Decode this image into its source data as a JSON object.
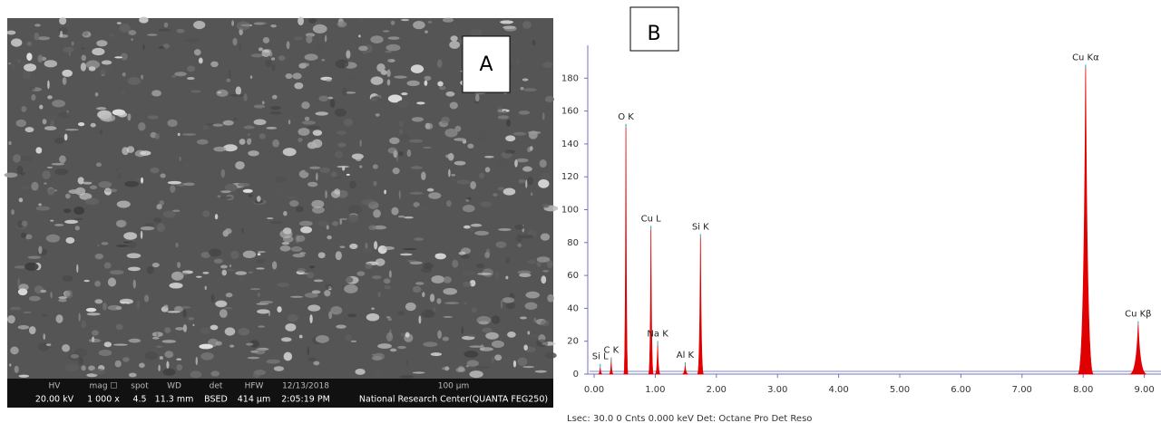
{
  "panel_a": {
    "label": "A",
    "info_bar": [
      {
        "top": "HV",
        "bottom": "20.00 kV"
      },
      {
        "top": "mag ☐",
        "bottom": "1 000 x"
      },
      {
        "top": "spot",
        "bottom": "4.5"
      },
      {
        "top": "WD",
        "bottom": "11.3 mm"
      },
      {
        "top": "det",
        "bottom": "BSED"
      },
      {
        "top": "HFW",
        "bottom": "414 µm"
      },
      {
        "top": "12/13/2018",
        "bottom": "2:05:19 PM"
      },
      {
        "top": "100 µm",
        "bottom": "National Research Center(QUANTA FEG250)"
      }
    ]
  },
  "chart_data": {
    "type": "spectrum",
    "label": "B",
    "color": "#e00000",
    "footer": "Lsec: 30.0 0 Cnts  0.000 keV Det: Octane Pro Det        Reso",
    "peaks": [
      {
        "label": "Si L",
        "energy": 0.1,
        "counts": 4
      },
      {
        "label": "C K",
        "energy": 0.28,
        "counts": 8
      },
      {
        "label": "O K",
        "energy": 0.52,
        "counts": 150
      },
      {
        "label": "Cu L",
        "energy": 0.93,
        "counts": 88
      },
      {
        "label": "Na K",
        "energy": 1.04,
        "counts": 18
      },
      {
        "label": "Al K",
        "energy": 1.49,
        "counts": 5
      },
      {
        "label": "Si K",
        "energy": 1.74,
        "counts": 83
      },
      {
        "label": "Cu Kα",
        "energy": 8.04,
        "counts": 186
      },
      {
        "label": "Cu Kβ",
        "energy": 8.9,
        "counts": 30
      }
    ],
    "xlim": [
      0,
      9.3
    ],
    "ylim": [
      0,
      200
    ],
    "xticks": [
      {
        "value": 0,
        "label": "0.00"
      },
      {
        "value": 1,
        "label": "1.00"
      },
      {
        "value": 2,
        "label": "2.00"
      },
      {
        "value": 3,
        "label": "3.00"
      },
      {
        "value": 4,
        "label": "4.00"
      },
      {
        "value": 5,
        "label": "5.00"
      },
      {
        "value": 6,
        "label": "6.00"
      },
      {
        "value": 7,
        "label": "7.00"
      },
      {
        "value": 8,
        "label": "8.00"
      },
      {
        "value": 9,
        "label": "9.00"
      }
    ],
    "yticks": [
      0,
      20,
      40,
      60,
      80,
      100,
      120,
      140,
      160,
      180
    ]
  }
}
